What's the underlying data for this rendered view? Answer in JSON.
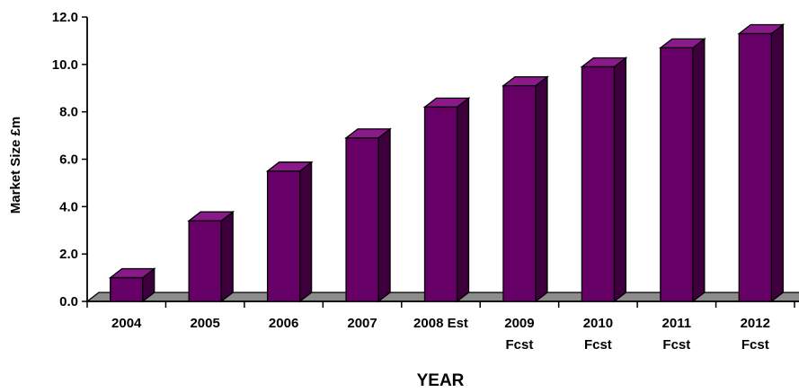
{
  "chart_data": {
    "type": "bar",
    "title": "",
    "xlabel": "YEAR",
    "ylabel": "Market Size £m",
    "categories": [
      "2004",
      "2005",
      "2006",
      "2007",
      "2008 Est",
      "2009 Fcst",
      "2010 Fcst",
      "2011 Fcst",
      "2012 Fcst"
    ],
    "category_lines": [
      [
        "2004"
      ],
      [
        "2005"
      ],
      [
        "2006"
      ],
      [
        "2007"
      ],
      [
        "2008 Est"
      ],
      [
        "2009",
        "Fcst"
      ],
      [
        "2010",
        "Fcst"
      ],
      [
        "2011",
        "Fcst"
      ],
      [
        "2012",
        "Fcst"
      ]
    ],
    "values": [
      1.0,
      3.4,
      5.5,
      6.9,
      8.2,
      9.1,
      9.9,
      10.7,
      11.3
    ],
    "ylim": [
      0,
      12
    ],
    "yticks": [
      "0.0",
      "2.0",
      "4.0",
      "6.0",
      "8.0",
      "10.0",
      "12.0"
    ],
    "grid": false,
    "legend": "none",
    "style": "3d-column",
    "colors": {
      "bar_front": "#660066",
      "bar_top": "#8a1a8a",
      "bar_side": "#3d003d",
      "floor": "#8c8c8c"
    }
  }
}
